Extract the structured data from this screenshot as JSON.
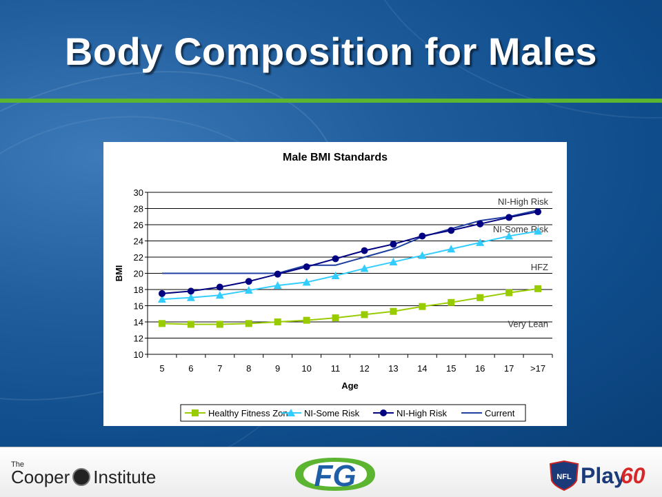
{
  "slide": {
    "title": "Body Composition for Males"
  },
  "colors": {
    "hfz": "#99cc00",
    "some_risk": "#33ccff",
    "high_risk": "#000080",
    "current": "#1f3fa0",
    "accent_bar": "#5cb531"
  },
  "chart_data": {
    "type": "line",
    "title": "Male BMI Standards",
    "xlabel": "Age",
    "ylabel": "BMI",
    "categories": [
      "5",
      "6",
      "7",
      "8",
      "9",
      "10",
      "11",
      "12",
      "13",
      "14",
      "15",
      "16",
      "17",
      ">17"
    ],
    "ylim": [
      10,
      30
    ],
    "yticks": [
      10,
      12,
      14,
      16,
      18,
      20,
      22,
      24,
      26,
      28,
      30
    ],
    "grid": true,
    "legend_position": "bottom",
    "series": [
      {
        "name": "Healthy Fitness Zone",
        "marker": "square",
        "color": "#99cc00",
        "values": [
          13.8,
          13.7,
          13.7,
          13.8,
          14.0,
          14.2,
          14.5,
          14.9,
          15.3,
          15.9,
          16.4,
          17.0,
          17.6,
          18.1
        ]
      },
      {
        "name": "NI-Some Risk",
        "marker": "triangle",
        "color": "#33ccff",
        "values": [
          16.8,
          17.0,
          17.3,
          17.9,
          18.5,
          18.9,
          19.7,
          20.6,
          21.4,
          22.2,
          23.0,
          23.8,
          24.6,
          25.2
        ]
      },
      {
        "name": "NI-High Risk",
        "marker": "circle",
        "color": "#000080",
        "values": [
          17.5,
          17.8,
          18.3,
          19.0,
          19.9,
          20.8,
          21.8,
          22.8,
          23.6,
          24.6,
          25.3,
          26.1,
          26.9,
          27.6
        ]
      },
      {
        "name": "Current",
        "marker": "none",
        "color": "#1f3fa0",
        "values": [
          20.0,
          20.0,
          20.0,
          20.0,
          20.0,
          21.0,
          21.0,
          22.0,
          23.0,
          24.5,
          25.5,
          26.5,
          27.0,
          27.8
        ]
      }
    ],
    "annotations": [
      {
        "text": "NI-High Risk",
        "y": 28.9
      },
      {
        "text": "NI-Some Risk",
        "y": 25.5
      },
      {
        "text": "HFZ",
        "y": 20.8
      },
      {
        "text": "Very Lean",
        "y": 13.8
      }
    ]
  },
  "footer": {
    "cooper_small": "The",
    "cooper_main_1": "Cooper",
    "cooper_main_2": "Institute",
    "fg_logo_text": "FG",
    "nfl_badge": "NFL",
    "play_text": "Play",
    "play_number": "60"
  }
}
